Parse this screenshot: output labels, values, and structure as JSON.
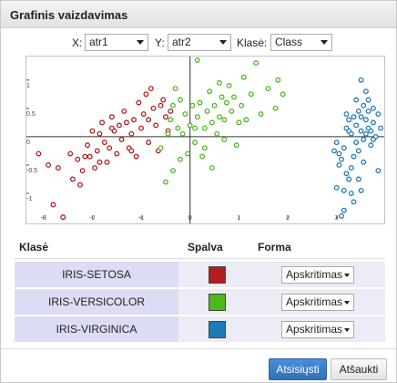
{
  "dialog": {
    "title": "Grafinis vaizdavimas"
  },
  "controls": {
    "x_label": "X:",
    "x_value": "atr1",
    "y_label": "Y:",
    "y_value": "atr2",
    "class_label": "Klasė:",
    "class_value": "Class"
  },
  "chart_data": {
    "type": "scatter",
    "xlim": [
      -3.2,
      3.9
    ],
    "ylim": [
      -1.45,
      1.35
    ],
    "x_ticks": [
      -3,
      -2,
      -1,
      0,
      1,
      2,
      3
    ],
    "y_ticks": [
      1,
      0.5,
      0,
      -0.5,
      -1
    ],
    "x_tick_labels": [
      "-3",
      "-2",
      "-1",
      "0",
      "1",
      "2",
      "3"
    ],
    "y_tick_labels": [
      "1",
      "0.5",
      "0",
      "-0.5",
      "-1"
    ],
    "grid": false,
    "series": [
      {
        "name": "IRIS-SETOSA",
        "color": "#b41c1c",
        "points": [
          [
            -3.1,
            -0.3
          ],
          [
            -2.9,
            -0.5
          ],
          [
            -2.8,
            -1.2
          ],
          [
            -2.6,
            -1.42
          ],
          [
            -2.7,
            -0.55
          ],
          [
            -2.45,
            -0.3
          ],
          [
            -2.4,
            -0.75
          ],
          [
            -2.3,
            -0.4
          ],
          [
            -2.25,
            -0.85
          ],
          [
            -2.2,
            -0.6
          ],
          [
            -2.1,
            -0.15
          ],
          [
            -2.05,
            -0.35
          ],
          [
            -1.95,
            -0.55
          ],
          [
            -1.9,
            -0.25
          ],
          [
            -1.85,
            0.05
          ],
          [
            -1.8,
            0.25
          ],
          [
            -1.75,
            -0.1
          ],
          [
            -1.7,
            -0.45
          ],
          [
            -1.65,
            -0.2
          ],
          [
            -1.6,
            0.35
          ],
          [
            -1.55,
            0.1
          ],
          [
            -1.5,
            -0.3
          ],
          [
            -1.45,
            0.2
          ],
          [
            -1.4,
            -0.05
          ],
          [
            -1.35,
            0.45
          ],
          [
            -1.3,
            0.25
          ],
          [
            -1.25,
            -0.2
          ],
          [
            -1.2,
            0.05
          ],
          [
            -1.15,
            0.3
          ],
          [
            -1.1,
            -0.35
          ],
          [
            -1.05,
            0.6
          ],
          [
            -1.0,
            0.15
          ],
          [
            -0.95,
            0.4
          ],
          [
            -0.9,
            0.75
          ],
          [
            -0.85,
            -0.1
          ],
          [
            -0.8,
            0.85
          ],
          [
            -0.75,
            0.5
          ],
          [
            -0.7,
            0.2
          ],
          [
            -0.65,
            -0.25
          ],
          [
            -0.6,
            0.55
          ],
          [
            -0.55,
            0.65
          ],
          [
            -0.5,
            0.35
          ],
          [
            -0.45,
            0.1
          ],
          [
            -0.4,
            0.45
          ],
          [
            -2.0,
            0.1
          ],
          [
            -1.6,
            0.15
          ],
          [
            -1.2,
            -0.25
          ],
          [
            -0.85,
            0.3
          ],
          [
            -2.15,
            -0.35
          ],
          [
            -1.85,
            -0.45
          ]
        ]
      },
      {
        "name": "IRIS-VERSICOLOR",
        "color": "#4cb81c",
        "points": [
          [
            -0.6,
            -0.2
          ],
          [
            -0.5,
            -0.8
          ],
          [
            -0.45,
            0.05
          ],
          [
            -0.4,
            0.3
          ],
          [
            -0.35,
            -0.6
          ],
          [
            -0.3,
            0.85
          ],
          [
            -0.25,
            0.15
          ],
          [
            -0.2,
            -0.4
          ],
          [
            -0.15,
            0.05
          ],
          [
            -0.1,
            0.4
          ],
          [
            -0.05,
            -0.3
          ],
          [
            0.0,
            0.2
          ],
          [
            0.05,
            0.55
          ],
          [
            0.1,
            -0.1
          ],
          [
            0.15,
            0.35
          ],
          [
            0.2,
            0.6
          ],
          [
            0.25,
            -0.35
          ],
          [
            0.3,
            0.15
          ],
          [
            0.35,
            0.45
          ],
          [
            0.4,
            0.8
          ],
          [
            0.45,
            0.25
          ],
          [
            0.5,
            0.55
          ],
          [
            0.55,
            0.05
          ],
          [
            0.6,
            0.35
          ],
          [
            0.65,
            0.7
          ],
          [
            0.7,
            0.3
          ],
          [
            0.75,
            0.6
          ],
          [
            0.8,
            0.9
          ],
          [
            0.85,
            0.45
          ],
          [
            0.9,
            0.7
          ],
          [
            1.0,
            0.25
          ],
          [
            1.05,
            0.55
          ],
          [
            1.1,
            1.05
          ],
          [
            1.15,
            0.3
          ],
          [
            1.25,
            0.75
          ],
          [
            1.35,
            1.3
          ],
          [
            1.45,
            0.4
          ],
          [
            1.6,
            0.85
          ],
          [
            1.75,
            0.5
          ],
          [
            1.8,
            1.0
          ],
          [
            1.9,
            0.75
          ],
          [
            0.15,
            1.35
          ],
          [
            -0.2,
            0.65
          ],
          [
            0.45,
            -0.55
          ],
          [
            0.7,
            -0.05
          ],
          [
            -0.35,
            0.55
          ],
          [
            0.95,
            -0.15
          ],
          [
            0.6,
            0.95
          ],
          [
            0.3,
            -0.2
          ],
          [
            0.1,
            0.15
          ]
        ]
      },
      {
        "name": "IRIS-VIRGINICA",
        "color": "#1e7bb8",
        "points": [
          [
            2.95,
            -0.25
          ],
          [
            3.0,
            -0.9
          ],
          [
            3.05,
            -0.5
          ],
          [
            3.1,
            -1.4
          ],
          [
            3.15,
            -0.2
          ],
          [
            3.2,
            -0.65
          ],
          [
            3.25,
            0.1
          ],
          [
            3.3,
            -1.0
          ],
          [
            3.35,
            -0.35
          ],
          [
            3.4,
            0.2
          ],
          [
            3.45,
            -0.75
          ],
          [
            3.5,
            0.35
          ],
          [
            3.55,
            -0.45
          ],
          [
            3.6,
            0.05
          ],
          [
            3.65,
            0.45
          ],
          [
            3.7,
            -0.15
          ],
          [
            3.75,
            0.25
          ],
          [
            3.8,
            0.0
          ],
          [
            3.85,
            -0.6
          ],
          [
            3.9,
            0.15
          ],
          [
            3.25,
            0.3
          ],
          [
            3.35,
            0.35
          ],
          [
            3.5,
            0.1
          ],
          [
            3.6,
            0.3
          ],
          [
            3.7,
            0.1
          ],
          [
            3.15,
            -0.95
          ],
          [
            3.3,
            -0.55
          ],
          [
            3.45,
            -0.25
          ],
          [
            3.55,
            0.55
          ],
          [
            3.65,
            0.65
          ],
          [
            3.3,
            0.05
          ],
          [
            3.4,
            -0.1
          ],
          [
            3.05,
            -0.3
          ],
          [
            3.2,
            0.4
          ],
          [
            3.55,
            -0.05
          ],
          [
            3.75,
            0.5
          ],
          [
            3.85,
            0.4
          ],
          [
            3.45,
            0.45
          ],
          [
            3.35,
            -1.15
          ],
          [
            3.15,
            -1.3
          ],
          [
            3.0,
            -0.1
          ],
          [
            3.5,
            -0.95
          ],
          [
            3.65,
            0.15
          ],
          [
            3.4,
            0.65
          ],
          [
            3.1,
            -0.4
          ],
          [
            3.25,
            -0.75
          ],
          [
            3.5,
            1.0
          ],
          [
            3.75,
            -0.05
          ],
          [
            3.2,
            0.15
          ],
          [
            3.6,
            0.8
          ]
        ]
      }
    ]
  },
  "table": {
    "headers": {
      "class": "Klasė",
      "color": "Spalva",
      "shape": "Forma"
    },
    "rows": [
      {
        "name": "IRIS-SETOSA",
        "color": "#b41c1c",
        "shape": "Apskritimas"
      },
      {
        "name": "IRIS-VERSICOLOR",
        "color": "#4cb81c",
        "shape": "Apskritimas"
      },
      {
        "name": "IRIS-VIRGINICA",
        "color": "#1e7bb8",
        "shape": "Apskritimas"
      }
    ]
  },
  "footer": {
    "download_label": "Atsisiųsti",
    "cancel_label": "Atšaukti"
  }
}
